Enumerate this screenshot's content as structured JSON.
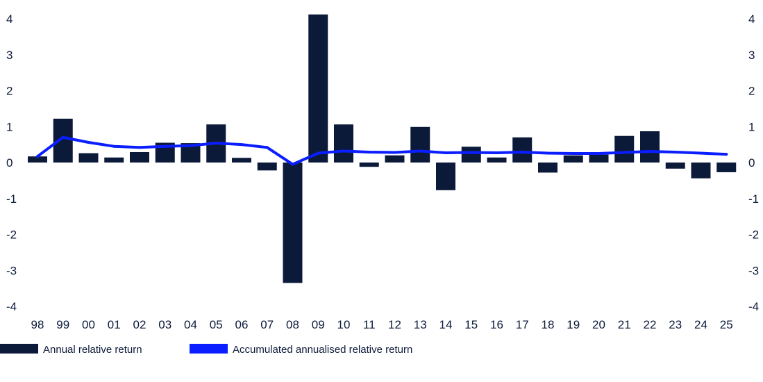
{
  "chart_data": {
    "type": "bar",
    "categories": [
      "98",
      "99",
      "00",
      "01",
      "02",
      "03",
      "04",
      "05",
      "06",
      "07",
      "08",
      "09",
      "10",
      "11",
      "12",
      "13",
      "14",
      "15",
      "16",
      "17",
      "18",
      "19",
      "20",
      "21",
      "22",
      "23",
      "24",
      "25"
    ],
    "series": [
      {
        "name": "Annual relative return",
        "type": "bar",
        "color": "#0c1a3a",
        "values": [
          0.17,
          1.22,
          0.26,
          0.14,
          0.29,
          0.55,
          0.54,
          1.06,
          0.13,
          -0.22,
          -3.35,
          4.12,
          1.06,
          -0.12,
          0.2,
          0.99,
          -0.77,
          0.44,
          0.14,
          0.7,
          -0.28,
          0.2,
          0.22,
          0.74,
          0.87,
          -0.17,
          -0.44,
          -0.27
        ]
      },
      {
        "name": "Accumulated annualised relative return",
        "type": "line",
        "color": "#0a1eff",
        "values": [
          0.17,
          0.7,
          0.56,
          0.45,
          0.42,
          0.45,
          0.47,
          0.54,
          0.5,
          0.42,
          -0.05,
          0.26,
          0.32,
          0.29,
          0.28,
          0.32,
          0.27,
          0.28,
          0.27,
          0.29,
          0.26,
          0.25,
          0.25,
          0.28,
          0.31,
          0.29,
          0.26,
          0.23
        ]
      }
    ],
    "yticks": [
      "-4",
      "-3",
      "-2",
      "-1",
      "0",
      "1",
      "2",
      "3",
      "4"
    ],
    "ylim": [
      -4,
      4
    ],
    "y_axis_sides": "both",
    "grid": false,
    "legend_position": "bottom-left",
    "title": "",
    "xlabel": "",
    "ylabel": ""
  }
}
